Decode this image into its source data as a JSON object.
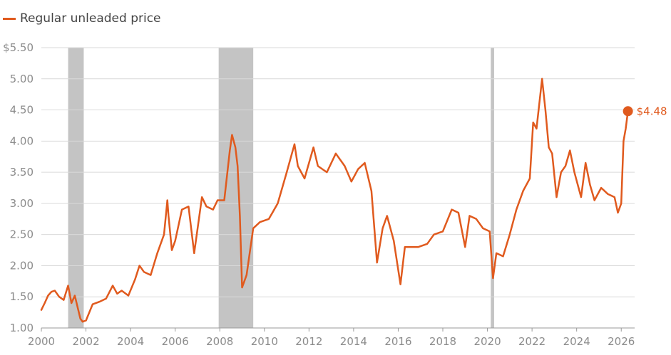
{
  "chart_data": {
    "type": "line",
    "title": "",
    "xlabel": "",
    "ylabel": "",
    "legend": {
      "placement": "top-left",
      "entries": [
        "Regular unleaded price"
      ]
    },
    "x_ticks": [
      "2000",
      "2002",
      "2004",
      "2006",
      "2008",
      "2010",
      "2012",
      "2014",
      "2016",
      "2018",
      "2020",
      "2022",
      "2024",
      "2026"
    ],
    "y_ticks": [
      "$5.50",
      "5.00",
      "4.50",
      "4.00",
      "3.50",
      "3.00",
      "2.50",
      "2.00",
      "1.50",
      "1.00"
    ],
    "xlim": [
      2000,
      2026.6
    ],
    "ylim": [
      1.0,
      5.5
    ],
    "grid": "horizontal",
    "recessions": [
      {
        "start": 2001.2,
        "end": 2001.9
      },
      {
        "start": 2007.95,
        "end": 2009.5
      },
      {
        "start": 2020.15,
        "end": 2020.3
      }
    ],
    "recession_color": "#c4c4c4",
    "line_color": "#e05a1e",
    "end_value_label": "$4.48",
    "series": [
      {
        "name": "Regular unleaded price",
        "x": [
          2000.0,
          2000.15,
          2000.3,
          2000.45,
          2000.6,
          2000.8,
          2001.0,
          2001.2,
          2001.35,
          2001.5,
          2001.75,
          2001.85,
          2002.0,
          2002.3,
          2002.6,
          2002.9,
          2003.2,
          2003.4,
          2003.6,
          2003.9,
          2004.2,
          2004.4,
          2004.6,
          2004.9,
          2005.2,
          2005.5,
          2005.65,
          2005.7,
          2005.85,
          2006.0,
          2006.3,
          2006.6,
          2006.85,
          2007.2,
          2007.4,
          2007.7,
          2007.9,
          2008.2,
          2008.45,
          2008.55,
          2008.7,
          2008.8,
          2008.9,
          2009.0,
          2009.2,
          2009.5,
          2009.8,
          2010.2,
          2010.6,
          2011.0,
          2011.35,
          2011.5,
          2011.8,
          2012.2,
          2012.4,
          2012.8,
          2013.2,
          2013.6,
          2013.9,
          2014.2,
          2014.5,
          2014.8,
          2015.05,
          2015.3,
          2015.5,
          2015.8,
          2016.1,
          2016.3,
          2016.6,
          2016.9,
          2017.3,
          2017.6,
          2018.0,
          2018.4,
          2018.7,
          2019.0,
          2019.2,
          2019.5,
          2019.8,
          2020.1,
          2020.25,
          2020.4,
          2020.7,
          2021.0,
          2021.3,
          2021.6,
          2021.9,
          2022.05,
          2022.2,
          2022.45,
          2022.6,
          2022.75,
          2022.9,
          2023.1,
          2023.3,
          2023.5,
          2023.7,
          2023.9,
          2024.2,
          2024.4,
          2024.6,
          2024.8,
          2025.1,
          2025.4,
          2025.7,
          2025.85,
          2026.0,
          2026.1,
          2026.2,
          2026.3
        ],
        "y": [
          1.29,
          1.4,
          1.52,
          1.58,
          1.6,
          1.5,
          1.45,
          1.68,
          1.4,
          1.52,
          1.15,
          1.1,
          1.12,
          1.38,
          1.42,
          1.47,
          1.68,
          1.55,
          1.6,
          1.52,
          1.78,
          2.0,
          1.9,
          1.85,
          2.2,
          2.5,
          3.05,
          2.8,
          2.25,
          2.4,
          2.9,
          2.95,
          2.2,
          3.1,
          2.95,
          2.9,
          3.05,
          3.05,
          3.85,
          4.1,
          3.9,
          3.6,
          2.8,
          1.65,
          1.85,
          2.6,
          2.7,
          2.75,
          3.0,
          3.5,
          3.95,
          3.6,
          3.4,
          3.9,
          3.6,
          3.5,
          3.8,
          3.6,
          3.35,
          3.55,
          3.65,
          3.2,
          2.05,
          2.6,
          2.8,
          2.4,
          1.7,
          2.3,
          2.3,
          2.3,
          2.35,
          2.5,
          2.55,
          2.9,
          2.85,
          2.3,
          2.8,
          2.75,
          2.6,
          2.55,
          1.8,
          2.2,
          2.15,
          2.5,
          2.9,
          3.2,
          3.4,
          4.3,
          4.2,
          5.0,
          4.5,
          3.9,
          3.8,
          3.1,
          3.5,
          3.6,
          3.85,
          3.5,
          3.1,
          3.65,
          3.3,
          3.05,
          3.25,
          3.15,
          3.1,
          2.85,
          3.0,
          4.0,
          4.2,
          4.48
        ]
      }
    ]
  }
}
